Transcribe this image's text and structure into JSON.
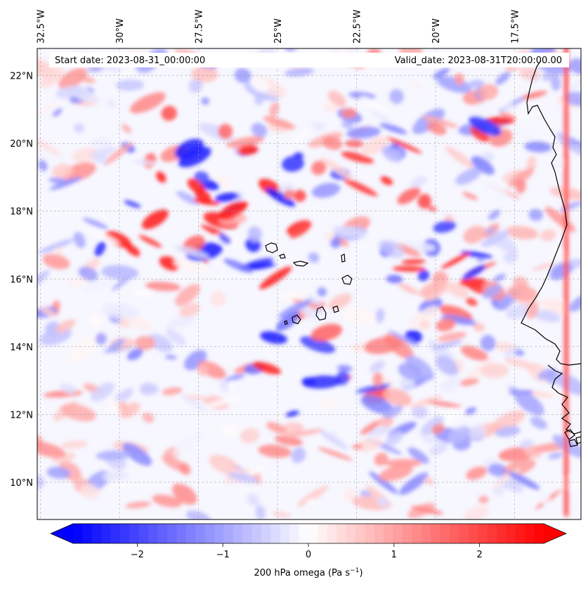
{
  "map": {
    "start_date": "Start date: 2023-08-31_00:00:00",
    "valid_date": "Valid_date: 2023-08-31T20:00:00.00",
    "lon_labels": [
      "32.5°W",
      "30°W",
      "27.5°W",
      "25°W",
      "22.5°W",
      "20°W",
      "17.5°W"
    ],
    "lon_values": [
      -32.5,
      -30,
      -27.5,
      -25,
      -22.5,
      -20,
      -17.5
    ],
    "lat_labels": [
      "22°N",
      "20°N",
      "18°N",
      "16°N",
      "14°N",
      "12°N",
      "10°N"
    ],
    "lat_values": [
      22,
      20,
      18,
      16,
      14,
      12,
      10
    ],
    "extent": {
      "lon_min": -32.6,
      "lon_max": -15.4,
      "lat_min": 8.9,
      "lat_max": 22.8
    },
    "colormap": "bwr",
    "coastline_color": "#000000"
  },
  "colorbar": {
    "label_prefix": "200 hPa omega (Pa s",
    "label_exp": "−1",
    "label_suffix": ")",
    "ticks": [
      "−2",
      "−1",
      "0",
      "1",
      "2"
    ],
    "tick_values": [
      -2,
      -1,
      0,
      1,
      2
    ],
    "range": [
      -2.75,
      2.75
    ],
    "extend": "both"
  }
}
